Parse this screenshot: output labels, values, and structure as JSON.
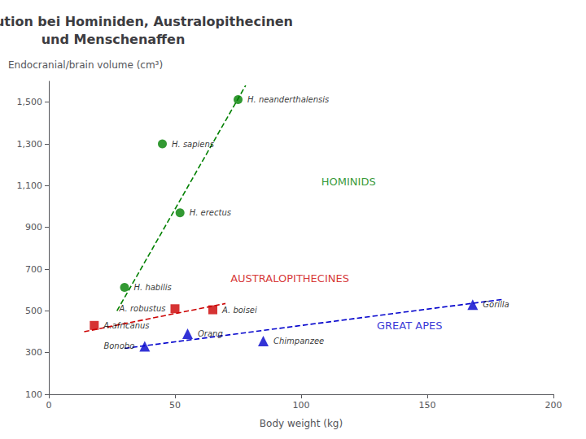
{
  "chart_data": {
    "type": "scatter",
    "title": "Hirnevolution bei Hominiden, Australopithecinen\nund Menschenaffen",
    "xlabel": "Body weight (kg)",
    "ylabel": "Endocranial/brain volume (cm³)",
    "xlim": [
      0,
      200
    ],
    "ylim": [
      100,
      1600
    ],
    "xticks": [
      0,
      50,
      100,
      150,
      200
    ],
    "yticks": [
      100,
      300,
      500,
      700,
      900,
      1100,
      1300,
      1500
    ],
    "grid": false,
    "series": [
      {
        "color": "#008000",
        "marker": "circle",
        "x": [
          30,
          45,
          75,
          52
        ],
        "y": [
          612,
          1300,
          1512,
          970
        ],
        "point_labels": [
          "H. habilis",
          "H. sapiens",
          "H. neanderthalensis",
          "H. erectus"
        ],
        "trend_line": {
          "type": "line",
          "line_style": "dashed",
          "x": [
            27,
            78
          ],
          "y": [
            500,
            1580
          ]
        }
      },
      {
        "color": "#cc0000",
        "marker": "square",
        "x": [
          18,
          50,
          65
        ],
        "y": [
          430,
          510,
          505
        ],
        "point_labels": [
          "A.africanus",
          "A. robustus",
          "A. boisei"
        ],
        "trend_line": {
          "type": "line",
          "line_style": "dashed",
          "x": [
            14,
            70
          ],
          "y": [
            400,
            535
          ]
        }
      },
      {
        "color": "#0000cc",
        "marker": "triangle",
        "x": [
          38,
          55,
          85,
          168
        ],
        "y": [
          330,
          390,
          355,
          530
        ],
        "point_labels": [
          "Bonobo",
          "Orang",
          "Chimpanzee",
          "Gorilla"
        ],
        "trend_line": {
          "type": "line",
          "line_style": "dashed",
          "x": [
            30,
            180
          ],
          "y": [
            320,
            555
          ]
        }
      }
    ],
    "annotations": [
      {
        "text": "HOMINIDS",
        "x": 108,
        "y": 1120,
        "color": "#008000"
      },
      {
        "text": "AUSTRALOPITHECINES",
        "x": 72,
        "y": 655,
        "color": "#cc0000"
      },
      {
        "text": "GREAT APES",
        "x": 130,
        "y": 430,
        "color": "#0000cc"
      }
    ]
  }
}
